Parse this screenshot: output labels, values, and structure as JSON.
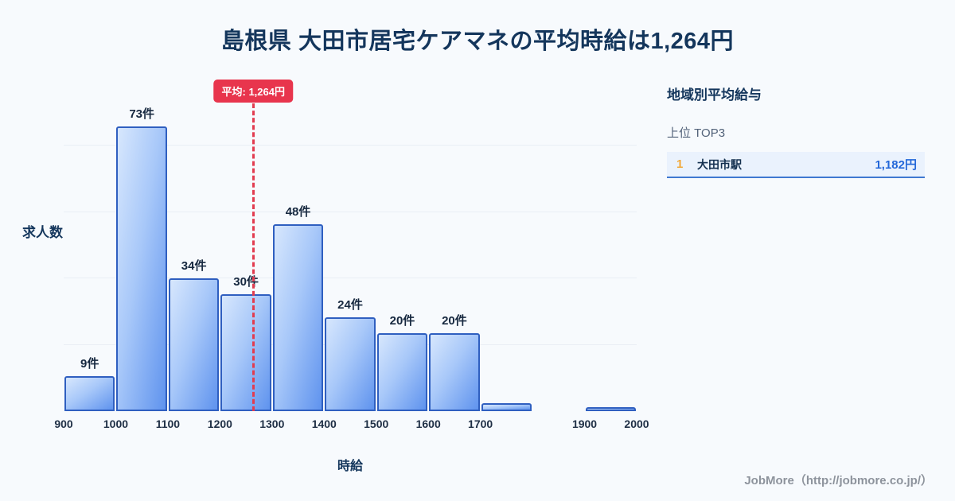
{
  "title": "島根県 大田市居宅ケアマネの平均時給は1,264円",
  "chart_data": {
    "type": "bar",
    "subtype": "histogram",
    "xlabel": "時給",
    "ylabel": "求人数",
    "x_range": [
      900,
      2000
    ],
    "ylim": [
      0,
      85
    ],
    "x_ticks": [
      900,
      1000,
      1100,
      1200,
      1300,
      1400,
      1500,
      1600,
      1700,
      1900,
      2000
    ],
    "bins": [
      {
        "range": [
          900,
          1000
        ],
        "count": 9,
        "label": "9件"
      },
      {
        "range": [
          1000,
          1100
        ],
        "count": 73,
        "label": "73件"
      },
      {
        "range": [
          1100,
          1200
        ],
        "count": 34,
        "label": "34件"
      },
      {
        "range": [
          1200,
          1300
        ],
        "count": 30,
        "label": "30件"
      },
      {
        "range": [
          1300,
          1400
        ],
        "count": 48,
        "label": "48件"
      },
      {
        "range": [
          1400,
          1500
        ],
        "count": 24,
        "label": "24件"
      },
      {
        "range": [
          1500,
          1600
        ],
        "count": 20,
        "label": "20件"
      },
      {
        "range": [
          1600,
          1700
        ],
        "count": 20,
        "label": "20件"
      },
      {
        "range": [
          1700,
          1800
        ],
        "count": 2,
        "label": ""
      },
      {
        "range": [
          1800,
          1900
        ],
        "count": 0,
        "label": ""
      },
      {
        "range": [
          1900,
          2000
        ],
        "count": 1,
        "label": ""
      }
    ],
    "mean": {
      "value": 1264,
      "label": "平均: 1,264円"
    },
    "grid": "horizontal",
    "legend": "none"
  },
  "sidebar": {
    "title": "地域別平均給与",
    "subtitle": "上位 TOP3",
    "items": [
      {
        "rank": "1",
        "name": "大田市駅",
        "value": "1,182円"
      }
    ]
  },
  "footer": {
    "credit": "JobMore（http://jobmore.co.jp/）"
  },
  "colors": {
    "background": "#f7fafd",
    "title_navy": "#14365c",
    "bar_fill_light": "#d7e7fd",
    "bar_fill_dark": "#5f93ee",
    "bar_border": "#2f5fc0",
    "mean_red": "#e8354d",
    "rank_gold": "#f2a93b",
    "value_blue": "#2468d9",
    "row_bg": "#eaf2fd",
    "row_border": "#3f78d1",
    "gridline": "#e9eef5",
    "credit_gray": "#8d939c"
  }
}
